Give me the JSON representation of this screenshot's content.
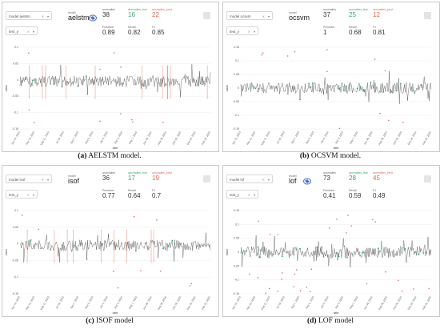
{
  "labels": {
    "model_select_prefix": "model",
    "column_select": "test_y",
    "model_caption": "model",
    "anomalies": "anomalies",
    "anomalies_true": "anomalies_true",
    "anomalies_pred": "anomalies_pred",
    "precision": "Precision",
    "recall": "Recall",
    "f1": "F1",
    "xaxis": "date",
    "yaxis": "value"
  },
  "panels": [
    {
      "model": "aelstm",
      "select_value": "aelstm",
      "anomalies": "38",
      "true": "16",
      "pred": "22",
      "precision": "0.89",
      "recall": "0.82",
      "f1": "0.85",
      "caption_letter": "(a)",
      "caption_text": " AELSTM model.",
      "yticks": [
        "0.1",
        "0.05",
        "0",
        "-0.05",
        "-0.1",
        "-0.15"
      ],
      "xticks": [
        "Jan 13, 2023",
        "Mar 13, 2023",
        "May 11, 2023",
        "Jul 10, 2023",
        "Sep 7, 2023",
        "Nov 5, 2023",
        "Jan 4, 2024",
        "Mar 3, 2024",
        "May 1, 2024",
        "Jun 30, 2024",
        "Aug 28, 2024",
        "Oct 26, 2024",
        "Dec 24, 2024",
        "Feb 22, 2025"
      ]
    },
    {
      "model": "ocsvm",
      "select_value": "ocsvm",
      "anomalies": "37",
      "true": "25",
      "pred": "12",
      "precision": "1",
      "recall": "0.68",
      "f1": "0.81",
      "caption_letter": "(b)",
      "caption_text": " OCSVM model.",
      "yticks": [
        "0.15",
        "0.1",
        "0.05",
        "0",
        "-0.05",
        "-0.1",
        "-0.15"
      ],
      "xticks": [
        "Jan 13, 2023",
        "Mar 13, 2023",
        "May 11, 2023",
        "Jul 10, 2023",
        "Sep 7, 2023",
        "Nov 5, 2023",
        "Jan 4, 2024",
        "Mar 3, 2024",
        "May 1, 2024",
        "Jun 30, 2024",
        "Aug 28, 2024",
        "Oct 26, 2024",
        "Dec 24, 2024",
        "Feb 22, 2025"
      ]
    },
    {
      "model": "isof",
      "select_value": "isof",
      "anomalies": "36",
      "true": "17",
      "pred": "19",
      "precision": "0.77",
      "recall": "0.64",
      "f1": "0.7",
      "caption_letter": "(c)",
      "caption_text": " ISOF model",
      "yticks": [
        "0.1",
        "0.05",
        "0",
        "-0.05",
        "-0.1",
        "-0.15"
      ],
      "xticks": [
        "Jan 13, 2023",
        "Mar 13, 2023",
        "May 11, 2023",
        "Jul 10, 2023",
        "Sep 7, 2023",
        "Nov 5, 2023",
        "Jan 4, 2024",
        "Mar 3, 2024",
        "May 1, 2024",
        "Jun 30, 2024",
        "Aug 28, 2024",
        "Oct 26, 2024",
        "Dec 24, 2024",
        "Feb 22, 2025"
      ]
    },
    {
      "model": "lof",
      "select_value": "lof",
      "anomalies": "73",
      "true": "28",
      "pred": "45",
      "precision": "0.41",
      "recall": "0.59",
      "f1": "0.49",
      "caption_letter": "(d)",
      "caption_text": " LOF model",
      "yticks": [
        "0.15",
        "0.1",
        "0.05",
        "0",
        "-0.05",
        "-0.1",
        "-0.15"
      ],
      "xticks": [
        "Jan 13, 2023",
        "Mar 13, 2023",
        "May 11, 2023",
        "Jul 10, 2023",
        "Sep 7, 2023",
        "Nov 5, 2023",
        "Jan 4, 2024",
        "Mar 3, 2024",
        "May 1, 2024",
        "Jun 30, 2024",
        "Aug 28, 2024",
        "Oct 26, 2024",
        "Dec 24, 2024",
        "Feb 22, 2025"
      ]
    }
  ],
  "colors": {
    "series": "#333333",
    "true_marker": "#3aa56b",
    "pred_marker": "#e06a56",
    "grid": "#eeeeee"
  }
}
